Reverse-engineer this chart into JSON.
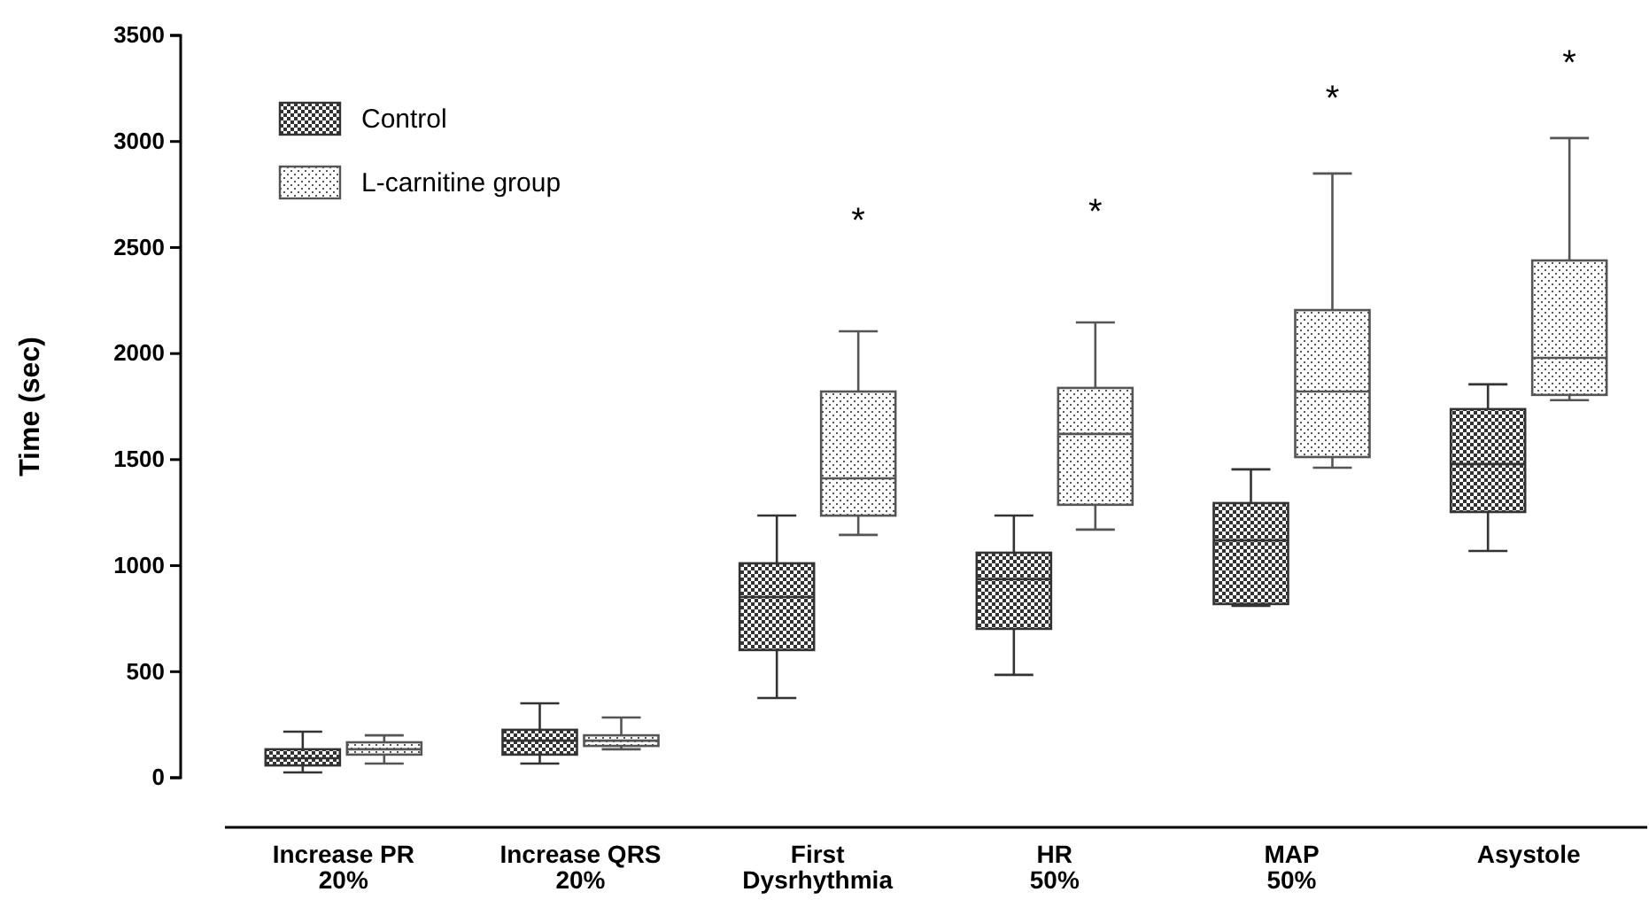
{
  "chart_data": {
    "type": "box",
    "ylabel": "Time (sec)",
    "categories": [
      "Increase PR 20%",
      "Increase QRS 20%",
      "First Dysrhythmia",
      "HR 50%",
      "MAP 50%",
      "Asystole"
    ],
    "ylim": [
      0,
      3500
    ],
    "yticks": [
      0,
      500,
      1000,
      1500,
      2000,
      2500,
      3000,
      3500
    ],
    "legend": "top left",
    "grid": false,
    "series": [
      {
        "name": "Control",
        "color": "#333333",
        "boxes": [
          {
            "low": 25,
            "q1": 58,
            "median": 92,
            "q3": 134,
            "high": 217
          },
          {
            "low": 67,
            "q1": 109,
            "median": 175,
            "q3": 226,
            "high": 351
          },
          {
            "low": 376,
            "q1": 602,
            "median": 852,
            "q3": 1011,
            "high": 1236
          },
          {
            "low": 485,
            "q1": 702,
            "median": 936,
            "q3": 1061,
            "high": 1236
          },
          {
            "low": 810,
            "q1": 819,
            "median": 1119,
            "q3": 1295,
            "high": 1454
          },
          {
            "low": 1069,
            "q1": 1253,
            "median": 1479,
            "q3": 1738,
            "high": 1855
          }
        ]
      },
      {
        "name": "L-carnitine group",
        "color": "#555555",
        "boxes": [
          {
            "low": 67,
            "q1": 109,
            "median": 134,
            "q3": 167,
            "high": 200
          },
          {
            "low": 134,
            "q1": 150,
            "median": 175,
            "q3": 200,
            "high": 284
          },
          {
            "low": 1145,
            "q1": 1236,
            "median": 1412,
            "q3": 1821,
            "high": 2105
          },
          {
            "low": 1170,
            "q1": 1287,
            "median": 1621,
            "q3": 1838,
            "high": 2147
          },
          {
            "low": 1462,
            "q1": 1512,
            "median": 1821,
            "q3": 2205,
            "high": 2849
          },
          {
            "low": 1780,
            "q1": 1805,
            "median": 1980,
            "q3": 2439,
            "high": 3016
          }
        ]
      }
    ],
    "annotations": [
      "*",
      "*",
      "*",
      "*"
    ]
  }
}
